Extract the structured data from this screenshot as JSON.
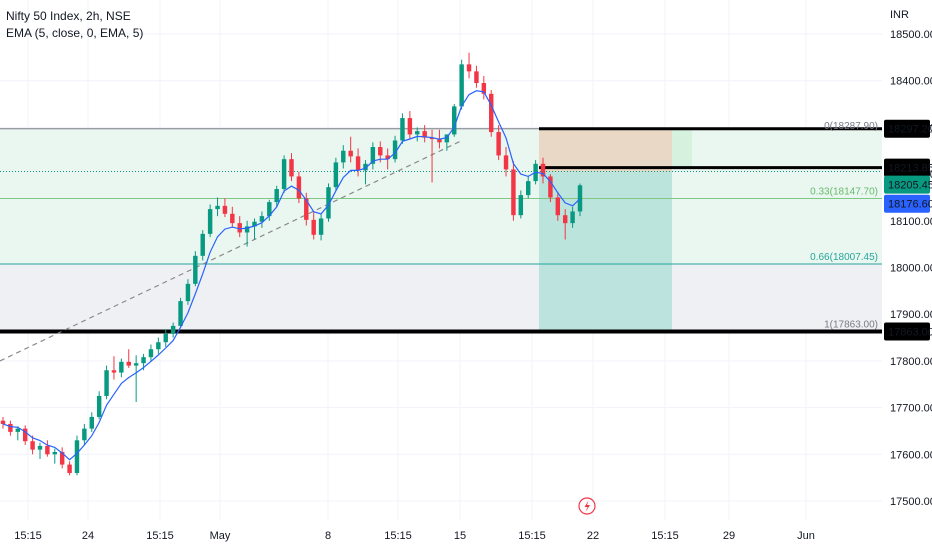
{
  "header": {
    "symbol": "Nifty 50 Index, 2h, NSE",
    "indicator": "EMA (5, close, 0, EMA, 5)",
    "currency": "INR"
  },
  "colors": {
    "up": "#089981",
    "down": "#f23645",
    "ema": "#2962ff",
    "grid": "#f0f3fa",
    "fib_zone_upper": "#e8f5ee",
    "fib_zone_lower": "#eef0f4",
    "target_zone": "#b3e0d9",
    "stop_zone": "#e8d5c0",
    "current_price_bg": "#2962ff"
  },
  "chart_data": {
    "type": "candlestick",
    "y_axis": {
      "ticks": [
        "18500.00",
        "18400.00",
        "18300.00",
        "18200.00",
        "18100.00",
        "18000.00",
        "17900.00",
        "17800.00",
        "17700.00",
        "17600.00",
        "17500.00"
      ],
      "range": [
        17480,
        18520
      ]
    },
    "x_axis": {
      "ticks": [
        "15:15",
        "24",
        "15:15",
        "May",
        "8",
        "15:15",
        "15",
        "15:15",
        "22",
        "15:15",
        "29",
        "Jun"
      ]
    },
    "price_labels": {
      "level_1": "18297.20",
      "level_2": "18213.85",
      "level_3": "18205.45",
      "current": "18176.60",
      "level_4": "17863.00"
    },
    "fib_levels": [
      {
        "label": "0(18287.90)",
        "value": 18287.9
      },
      {
        "label": "0.33(18147.70)",
        "value": 18147.7
      },
      {
        "label": "0.66(18007.45)",
        "value": 18007.45
      },
      {
        "label": "1(17863.00)",
        "value": 17863
      }
    ],
    "candles": [
      [
        17672,
        17680,
        17655,
        17665
      ],
      [
        17665,
        17672,
        17640,
        17648
      ],
      [
        17648,
        17660,
        17630,
        17655
      ],
      [
        17655,
        17662,
        17620,
        17628
      ],
      [
        17628,
        17640,
        17600,
        17610
      ],
      [
        17610,
        17625,
        17590,
        17618
      ],
      [
        17618,
        17630,
        17595,
        17600
      ],
      [
        17600,
        17612,
        17580,
        17605
      ],
      [
        17605,
        17615,
        17570,
        17578
      ],
      [
        17578,
        17585,
        17555,
        17560
      ],
      [
        17560,
        17640,
        17555,
        17630
      ],
      [
        17630,
        17665,
        17620,
        17655
      ],
      [
        17655,
        17690,
        17648,
        17680
      ],
      [
        17680,
        17735,
        17675,
        17725
      ],
      [
        17725,
        17790,
        17718,
        17780
      ],
      [
        17780,
        17810,
        17760,
        17775
      ],
      [
        17775,
        17805,
        17765,
        17798
      ],
      [
        17798,
        17825,
        17785,
        17790
      ],
      [
        17790,
        17812,
        17712,
        17795
      ],
      [
        17795,
        17815,
        17780,
        17808
      ],
      [
        17808,
        17835,
        17798,
        17825
      ],
      [
        17825,
        17850,
        17815,
        17840
      ],
      [
        17840,
        17868,
        17830,
        17858
      ],
      [
        17858,
        17882,
        17850,
        17875
      ],
      [
        17875,
        17935,
        17870,
        17928
      ],
      [
        17928,
        17975,
        17920,
        17965
      ],
      [
        17965,
        18035,
        17960,
        18025
      ],
      [
        18025,
        18080,
        18015,
        18072
      ],
      [
        18072,
        18135,
        18065,
        18125
      ],
      [
        18125,
        18150,
        18110,
        18132
      ],
      [
        18132,
        18148,
        18108,
        18115
      ],
      [
        18115,
        18130,
        18085,
        18095
      ],
      [
        18095,
        18110,
        18065,
        18075
      ],
      [
        18075,
        18100,
        18045,
        18088
      ],
      [
        18088,
        18105,
        18060,
        18098
      ],
      [
        18098,
        18120,
        18085,
        18110
      ],
      [
        18110,
        18145,
        18100,
        18140
      ],
      [
        18140,
        18175,
        18130,
        18168
      ],
      [
        18168,
        18240,
        18160,
        18232
      ],
      [
        18232,
        18245,
        18185,
        18195
      ],
      [
        18195,
        18205,
        18138,
        18148
      ],
      [
        18148,
        18160,
        18090,
        18102
      ],
      [
        18102,
        18118,
        18060,
        18070
      ],
      [
        18070,
        18115,
        18058,
        18105
      ],
      [
        18105,
        18180,
        18098,
        18172
      ],
      [
        18172,
        18235,
        18165,
        18225
      ],
      [
        18225,
        18262,
        18212,
        18250
      ],
      [
        18250,
        18280,
        18225,
        18238
      ],
      [
        18238,
        18255,
        18195,
        18208
      ],
      [
        18208,
        18230,
        18178,
        18222
      ],
      [
        18222,
        18268,
        18210,
        18258
      ],
      [
        18258,
        18270,
        18225,
        18240
      ],
      [
        18240,
        18255,
        18210,
        18232
      ],
      [
        18232,
        18282,
        18225,
        18272
      ],
      [
        18272,
        18330,
        18265,
        18320
      ],
      [
        18320,
        18335,
        18275,
        18285
      ],
      [
        18285,
        18300,
        18270,
        18292
      ],
      [
        18292,
        18305,
        18268,
        18278
      ],
      [
        18278,
        18295,
        18182,
        18275
      ],
      [
        18275,
        18295,
        18255,
        18268
      ],
      [
        18268,
        18282,
        18250,
        18285
      ],
      [
        18285,
        18350,
        18280,
        18345
      ],
      [
        18345,
        18445,
        18338,
        18435
      ],
      [
        18435,
        18460,
        18405,
        18420
      ],
      [
        18420,
        18432,
        18385,
        18395
      ],
      [
        18395,
        18410,
        18360,
        18372
      ],
      [
        18372,
        18380,
        18280,
        18290
      ],
      [
        18290,
        18305,
        18230,
        18240
      ],
      [
        18240,
        18258,
        18195,
        18210
      ],
      [
        18210,
        18228,
        18100,
        18112
      ],
      [
        18112,
        18165,
        18105,
        18155
      ],
      [
        18155,
        18195,
        18148,
        18185
      ],
      [
        18185,
        18230,
        18178,
        18222
      ],
      [
        18222,
        18235,
        18180,
        18195
      ],
      [
        18195,
        18200,
        18140,
        18150
      ],
      [
        18150,
        18162,
        18100,
        18112
      ],
      [
        18112,
        18125,
        18060,
        18095
      ],
      [
        18095,
        18130,
        18085,
        18120
      ],
      [
        18120,
        18180,
        18110,
        18176
      ]
    ]
  },
  "footer": {
    "event_icon": "lightning-icon"
  }
}
